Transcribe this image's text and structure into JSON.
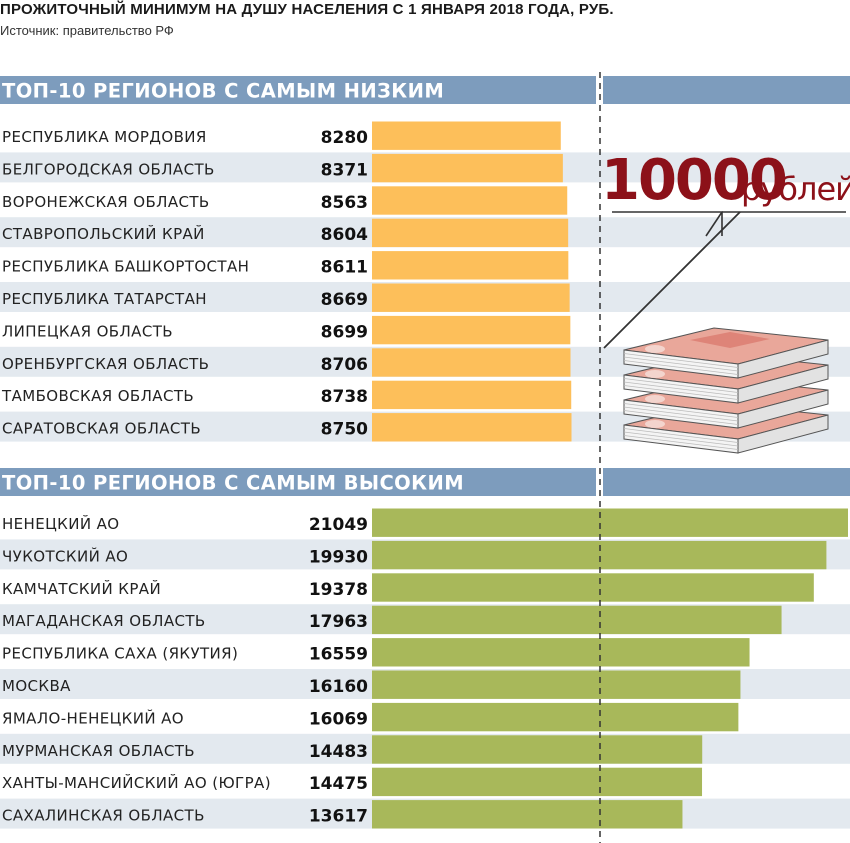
{
  "header": {
    "title": "ПРОЖИТОЧНЫЙ МИНИМУМ НА ДУШУ НАСЕЛЕНИЯ С 1 ЯНВАРЯ 2018 ГОДА, РУБ.",
    "source": "Источник: правительство РФ"
  },
  "callout": {
    "number": "10000",
    "unit": "рублей"
  },
  "colors": {
    "header_band": "#7d9cbd",
    "row_stripe": "#e3e9ef",
    "bar_low": "#fdbf5a",
    "bar_high": "#a8b85a",
    "callout_text": "#8c1119",
    "money": "#e9a79a"
  },
  "icons": {
    "callout": "banknote-stack-icon"
  },
  "chart_data": [
    {
      "type": "bar",
      "orientation": "horizontal",
      "title": "ТОП-10 РЕГИОНОВ С САМЫМ НИЗКИМ",
      "reference_line": 10000,
      "categories": [
        "РЕСПУБЛИКА МОРДОВИЯ",
        "БЕЛГОРОДСКАЯ ОБЛАСТЬ",
        "ВОРОНЕЖСКАЯ ОБЛАСТЬ",
        "СТАВРОПОЛЬСКИЙ КРАЙ",
        "РЕСПУБЛИКА БАШКОРТОСТАН",
        "РЕСПУБЛИКА ТАТАРСТАН",
        "ЛИПЕЦКАЯ ОБЛАСТЬ",
        "ОРЕНБУРГСКАЯ ОБЛАСТЬ",
        "ТАМБОВСКАЯ ОБЛАСТЬ",
        "САРАТОВСКАЯ ОБЛАСТЬ"
      ],
      "values": [
        8280,
        8371,
        8563,
        8604,
        8611,
        8669,
        8699,
        8706,
        8738,
        8750
      ]
    },
    {
      "type": "bar",
      "orientation": "horizontal",
      "title": "ТОП-10 РЕГИОНОВ С САМЫМ ВЫСОКИМ",
      "reference_line": 10000,
      "categories": [
        "НЕНЕЦКИЙ АО",
        "ЧУКОТСКИЙ АО",
        "КАМЧАТСКИЙ КРАЙ",
        "МАГАДАНСКАЯ ОБЛАСТЬ",
        "РЕСПУБЛИКА САХА (ЯКУТИЯ)",
        "МОСКВА",
        "ЯМАЛО-НЕНЕЦКИЙ АО",
        "МУРМАНСКАЯ ОБЛАСТЬ",
        "ХАНТЫ-МАНСИЙСКИЙ АО (ЮГРА)",
        "САХАЛИНСКАЯ ОБЛАСТЬ"
      ],
      "values": [
        21049,
        19930,
        19378,
        17963,
        16559,
        16160,
        16069,
        14483,
        14475,
        13617
      ]
    }
  ]
}
